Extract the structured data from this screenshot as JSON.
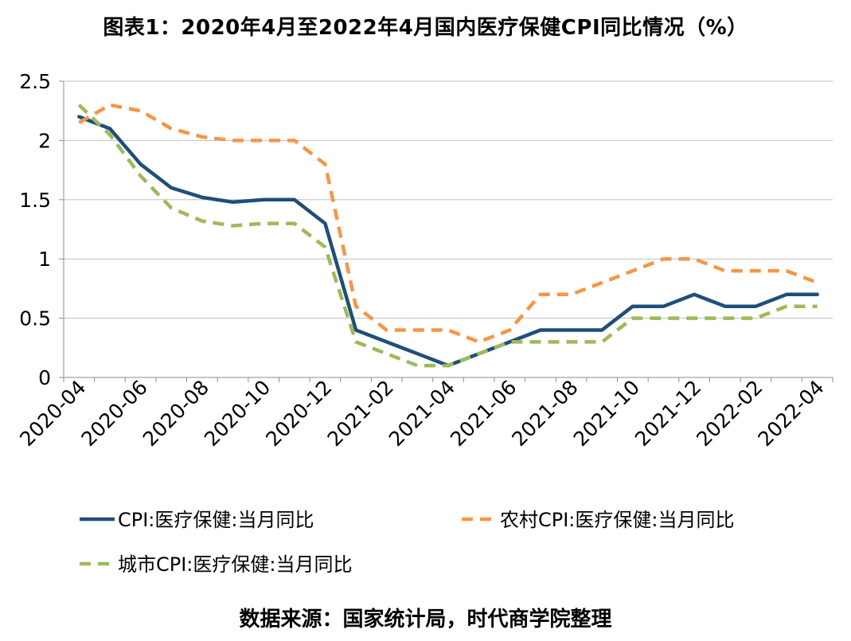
{
  "title": "图表1：2020年4月至2022年4月国内医疗保健CPI同比情况（%）",
  "source": "数据来源：国家统计局，时代商学院整理",
  "colors": {
    "cpi": "#1F4E79",
    "rural": "#F79646",
    "urban": "#9BBB59",
    "grid": "#BFBFBF"
  },
  "chart_data": {
    "type": "line",
    "title": "图表1：2020年4月至2022年4月国内医疗保健CPI同比情况（%）",
    "xlabel": "",
    "ylabel": "",
    "ylim": [
      0,
      2.5
    ],
    "yticks": [
      "0",
      "0.5",
      "1",
      "1.5",
      "2",
      "2.5"
    ],
    "grid": true,
    "legend_position": "bottom",
    "x": [
      "2020-04",
      "2020-05",
      "2020-06",
      "2020-07",
      "2020-08",
      "2020-09",
      "2020-10",
      "2020-11",
      "2020-12",
      "2021-01",
      "2021-02",
      "2021-03",
      "2021-04",
      "2021-05",
      "2021-06",
      "2021-07",
      "2021-08",
      "2021-09",
      "2021-10",
      "2021-11",
      "2021-12",
      "2022-01",
      "2022-02",
      "2022-03",
      "2022-04"
    ],
    "xtick_labels": [
      "2020-04",
      "2020-06",
      "2020-08",
      "2020-10",
      "2020-12",
      "2021-02",
      "2021-04",
      "2021-06",
      "2021-08",
      "2021-10",
      "2021-12",
      "2022-02",
      "2022-04"
    ],
    "series": [
      {
        "name": "CPI:医疗保健:当月同比",
        "style": "solid",
        "color": "#1F4E79",
        "values": [
          2.2,
          2.1,
          1.8,
          1.6,
          1.52,
          1.48,
          1.5,
          1.5,
          1.3,
          0.4,
          0.3,
          0.2,
          0.1,
          0.2,
          0.3,
          0.4,
          0.4,
          0.4,
          0.6,
          0.6,
          0.7,
          0.6,
          0.6,
          0.7,
          0.7
        ]
      },
      {
        "name": "农村CPI:医疗保健:当月同比",
        "style": "dashed",
        "color": "#F79646",
        "values": [
          2.15,
          2.3,
          2.25,
          2.1,
          2.03,
          2.0,
          2.0,
          2.0,
          1.8,
          0.6,
          0.4,
          0.4,
          0.4,
          0.3,
          0.4,
          0.7,
          0.7,
          0.8,
          0.9,
          1.0,
          1.0,
          0.9,
          0.9,
          0.9,
          0.8
        ]
      },
      {
        "name": "城市CPI:医疗保健:当月同比",
        "style": "dashed",
        "color": "#9BBB59",
        "values": [
          2.3,
          2.05,
          1.7,
          1.43,
          1.32,
          1.28,
          1.3,
          1.3,
          1.1,
          0.3,
          0.2,
          0.1,
          0.1,
          0.2,
          0.3,
          0.3,
          0.3,
          0.3,
          0.5,
          0.5,
          0.5,
          0.5,
          0.5,
          0.6,
          0.6
        ]
      }
    ]
  }
}
